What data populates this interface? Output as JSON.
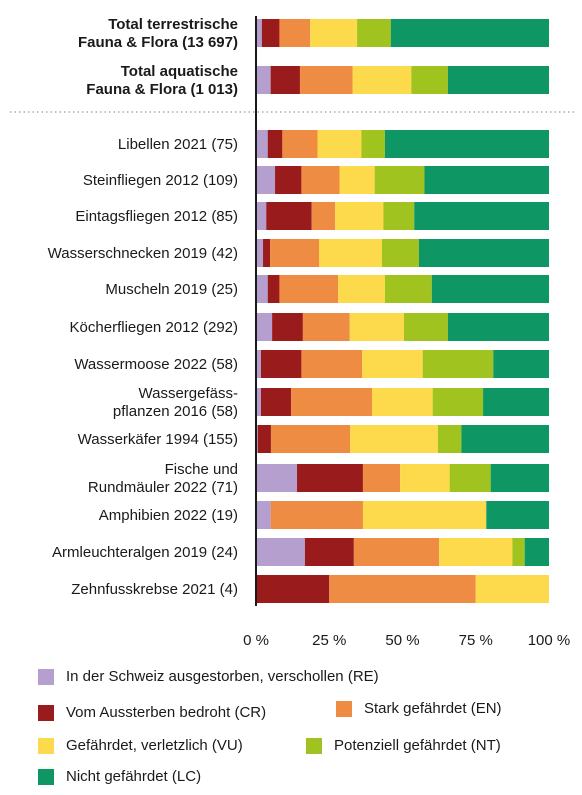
{
  "chart_data": {
    "type": "bar",
    "orientation": "horizontal",
    "stacked": true,
    "percent_axis": true,
    "xlim": [
      0,
      100
    ],
    "x_ticks": [
      "0 %",
      "25 %",
      "50 %",
      "75 %",
      "100 %"
    ],
    "categories": [
      [
        "Total terrestrische",
        "Fauna & Flora (13 697)"
      ],
      [
        "Total aquatische",
        "Fauna & Flora (1 013)"
      ],
      [
        "Libellen 2021 (75)"
      ],
      [
        "Steinfliegen 2012 (109)"
      ],
      [
        "Eintagsfliegen 2012 (85)"
      ],
      [
        "Wasserschnecken 2019 (42)"
      ],
      [
        "Muscheln 2019 (25)"
      ],
      [
        "Köcherfliegen 2012 (292)"
      ],
      [
        "Wassermoose 2022 (58)"
      ],
      [
        "Wassergefäss-",
        "pflanzen 2016 (58)"
      ],
      [
        "Wasserkäfer 1994 (155)"
      ],
      [
        "Fische und",
        "Rundmäuler 2022 (71)"
      ],
      [
        "Amphibien 2022 (19)"
      ],
      [
        "Armleuchteralgen 2019 (24)"
      ],
      [
        "Zehnfusskrebse 2021 (4)"
      ]
    ],
    "bold_categories": [
      0,
      1
    ],
    "series": [
      {
        "name": "In der Schweiz ausgestorben, verschollen (RE)",
        "color": "#b59fcf",
        "values": [
          2,
          5,
          4,
          6.5,
          3.5,
          2.4,
          4,
          5.5,
          1.7,
          1.7,
          0.6,
          14,
          5,
          16.7,
          0
        ]
      },
      {
        "name": "Vom Aussterben bedroht (CR)",
        "color": "#9a1b1b",
        "values": [
          6,
          10,
          5,
          9,
          15.5,
          2.4,
          4,
          10.5,
          13.8,
          10.3,
          4.5,
          22.5,
          0,
          16.7,
          25
        ]
      },
      {
        "name": "Stark gefährdet (EN)",
        "color": "#ef8c43",
        "values": [
          10.5,
          18,
          12,
          13,
          8,
          16.7,
          20,
          16,
          20.7,
          27.6,
          27,
          12.7,
          31.5,
          29.1,
          50
        ]
      },
      {
        "name": "Gefährdet, verletzlich (VU)",
        "color": "#fdd94c",
        "values": [
          16,
          20,
          15,
          12,
          16.5,
          21.5,
          16,
          18.5,
          20.7,
          20.7,
          30,
          16.9,
          42.1,
          25,
          25
        ]
      },
      {
        "name": "Potenziell gefährdet (NT)",
        "color": "#a1c31f",
        "values": [
          11.5,
          12.5,
          8,
          17,
          10.5,
          12.6,
          16,
          15,
          24.1,
          17.2,
          8,
          14,
          0,
          4.2,
          0
        ]
      },
      {
        "name": "Nicht gefährdet (LC)",
        "color": "#0e9664",
        "values": [
          54,
          34.5,
          56,
          42.5,
          46,
          44.4,
          40,
          34.5,
          19,
          22.5,
          29.9,
          19.9,
          21.4,
          8.3,
          0
        ]
      }
    ]
  },
  "legend": {
    "items": [
      {
        "label": "In der Schweiz ausgestorben, verschollen (RE)",
        "color": "#b59fcf"
      },
      {
        "label": "Vom Aussterben bedroht (CR)",
        "color": "#9a1b1b"
      },
      {
        "label": "Stark gefährdet (EN)",
        "color": "#ef8c43"
      },
      {
        "label": "Gefährdet, verletzlich (VU)",
        "color": "#fdd94c"
      },
      {
        "label": "Potenziell gefährdet (NT)",
        "color": "#a1c31f"
      },
      {
        "label": "Nicht gefährdet (LC)",
        "color": "#0e9664"
      }
    ]
  }
}
